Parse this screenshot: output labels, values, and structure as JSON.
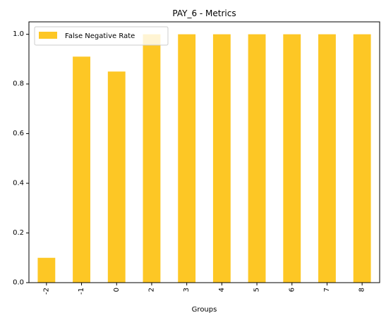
{
  "chart_data": {
    "type": "bar",
    "title": "PAY_6 - Metrics",
    "xlabel": "Groups",
    "ylabel": "",
    "categories": [
      "-2",
      "-1",
      "0",
      "2",
      "3",
      "4",
      "5",
      "6",
      "7",
      "8"
    ],
    "series": [
      {
        "name": "False Negative Rate",
        "values": [
          0.1,
          0.91,
          0.85,
          1.0,
          1.0,
          1.0,
          1.0,
          1.0,
          1.0,
          1.0
        ],
        "color": "#fdc725"
      }
    ],
    "ylim": [
      0,
      1.05
    ],
    "yticks": [
      "0.0",
      "0.2",
      "0.4",
      "0.6",
      "0.8",
      "1.0"
    ],
    "grid": false,
    "legend_position": "top-left",
    "x_tick_rotation": "vertical"
  }
}
